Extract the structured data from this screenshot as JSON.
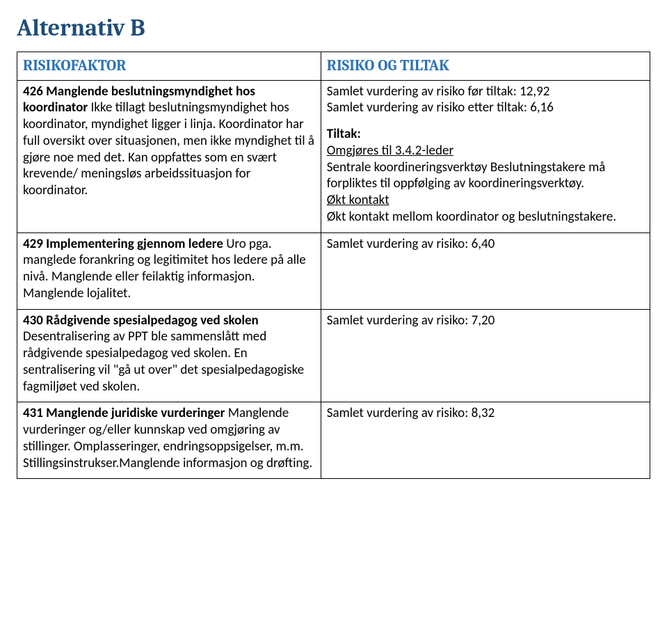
{
  "title": "Alternativ B",
  "title_color": "#1f4e79",
  "header_color": "#2e74b5",
  "columns": {
    "left": "RISIKOFAKTOR",
    "right": "RISIKO OG TILTAK"
  },
  "rows": [
    {
      "left_title": "426 Manglende beslutningsmyndighet hos koordinator",
      "left_body": "Ikke tillagt beslutningsmyndighet hos koordinator, myndighet ligger i linja. Koordinator har full oversikt over situasjonen, men ikke myndighet til å gjøre noe med det. Kan oppfattes som en svært krevende/ meningsløs arbeidssituasjon for koordinator.",
      "right_pre": "Samlet vurdering av risiko før tiltak: 12,92",
      "right_post": "Samlet vurdering av risiko etter tiltak: 6,16",
      "tiltak_label": "Tiltak:",
      "tiltak": [
        {
          "heading": "Omgjøres til 3.4.2-leder",
          "body": "Sentrale koordineringsverktøy Beslutningstakere må forpliktes til oppfølging av koordineringsverktøy."
        },
        {
          "heading": "Økt kontakt",
          "body": "Økt kontakt mellom koordinator og beslutningstakere."
        }
      ]
    },
    {
      "left_title": "429 Implementering gjennom ledere",
      "left_body": "Uro pga. manglede forankring og legitimitet hos ledere på alle nivå. Manglende eller feilaktig informasjon. Manglende lojalitet.",
      "right_single": "Samlet vurdering av risiko: 6,40"
    },
    {
      "left_title": "430 Rådgivende spesialpedagog ved skolen",
      "left_body": "Desentralisering av PPT ble sammenslått med rådgivende spesialpedagog ved skolen. En sentralisering vil \"gå ut over\" det spesialpedagogiske fagmiljøet ved skolen.",
      "right_single": "Samlet vurdering av risiko: 7,20"
    },
    {
      "left_title": "431 Manglende juridiske vurderinger",
      "left_body": "Manglende vurderinger og/eller kunnskap ved omgjøring av stillinger. Omplasseringer, endringsoppsigelser, m.m. Stillingsinstrukser.Manglende informasjon og drøfting.",
      "right_single": "Samlet vurdering av risiko: 8,32"
    }
  ]
}
